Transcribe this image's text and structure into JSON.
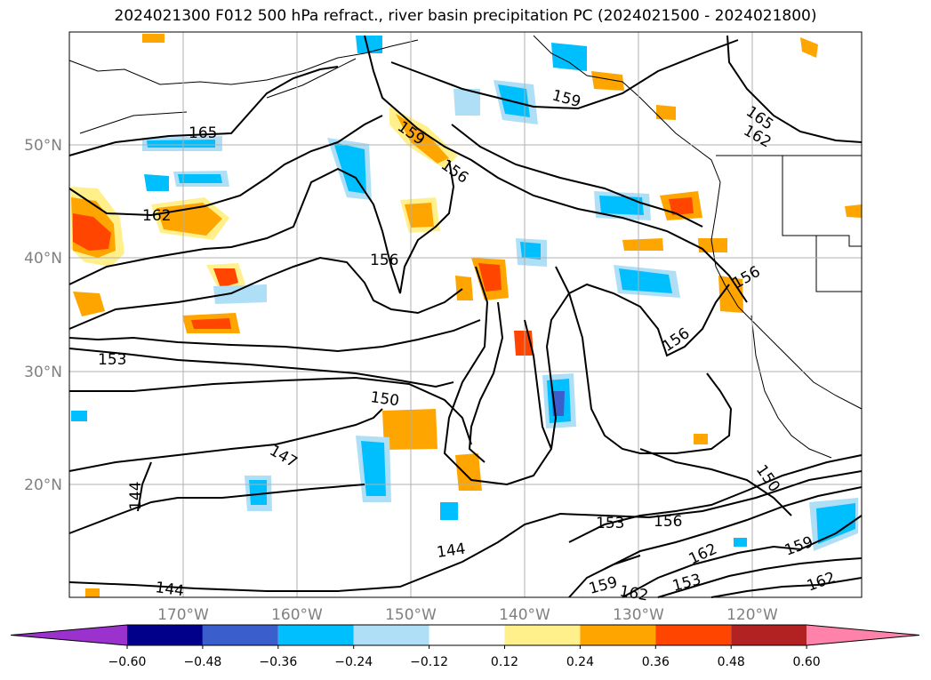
{
  "title": "2024021300 F012 500 hPa refract., river basin precipitation PC (2024021500 - 2024021800)",
  "lat_ticks": [
    "50°N",
    "40°N",
    "30°N",
    "20°N"
  ],
  "lon_ticks": [
    "170°W",
    "160°W",
    "150°W",
    "140°W",
    "130°W",
    "120°W"
  ],
  "contour_labels": [
    "165",
    "165",
    "162",
    "162",
    "159",
    "159",
    "159",
    "156",
    "156",
    "156",
    "156",
    "156",
    "153",
    "153",
    "150",
    "150",
    "147",
    "144",
    "144",
    "144",
    "153",
    "162",
    "162",
    "162",
    "159"
  ],
  "colorbar": {
    "ticks": [
      "−0.60",
      "−0.48",
      "−0.36",
      "−0.24",
      "−0.12",
      "0.12",
      "0.24",
      "0.36",
      "0.48",
      "0.60"
    ],
    "colors": [
      "#9b32cd",
      "#00008b",
      "#3a5fcd",
      "#00bfff",
      "#aedff7",
      "#ffffff",
      "#fff08c",
      "#ffa500",
      "#ff4500",
      "#b22222",
      "#ff82ab"
    ]
  }
}
